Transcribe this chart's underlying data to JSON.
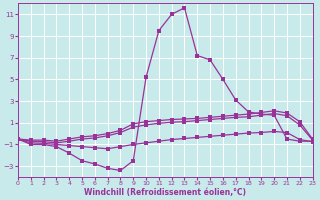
{
  "xlabel": "Windchill (Refroidissement éolien,°C)",
  "background_color": "#c8eaea",
  "grid_color": "#b8dada",
  "line_color": "#993399",
  "xlim": [
    0,
    23
  ],
  "ylim": [
    -4,
    12
  ],
  "yticks": [
    -3,
    -1,
    1,
    3,
    5,
    7,
    9,
    11
  ],
  "xticks": [
    0,
    1,
    2,
    3,
    4,
    5,
    6,
    7,
    8,
    9,
    10,
    11,
    12,
    13,
    14,
    15,
    16,
    17,
    18,
    19,
    20,
    21,
    22,
    23
  ],
  "series": {
    "main": {
      "x": [
        0,
        1,
        2,
        3,
        4,
        5,
        6,
        7,
        8,
        9,
        10,
        11,
        12,
        13,
        14,
        15,
        16,
        17,
        18,
        19,
        20,
        21,
        22,
        23
      ],
      "y": [
        -0.5,
        -1.0,
        -1.0,
        -1.2,
        -1.8,
        -2.5,
        -2.8,
        -3.2,
        -3.4,
        -2.5,
        5.2,
        9.5,
        11.0,
        11.6,
        7.2,
        6.8,
        5.0,
        3.1,
        2.0,
        1.8,
        1.7,
        -0.5,
        -0.7,
        -0.7
      ]
    },
    "upper": {
      "x": [
        0,
        1,
        2,
        3,
        4,
        5,
        6,
        7,
        8,
        9,
        10,
        11,
        12,
        13,
        14,
        15,
        16,
        17,
        18,
        19,
        20,
        21,
        22,
        23
      ],
      "y": [
        -0.5,
        -0.6,
        -0.6,
        -0.7,
        -0.5,
        -0.3,
        -0.2,
        0.0,
        0.3,
        0.9,
        1.1,
        1.2,
        1.3,
        1.35,
        1.4,
        1.5,
        1.6,
        1.7,
        1.8,
        1.95,
        2.1,
        1.9,
        1.1,
        -0.5
      ]
    },
    "mid": {
      "x": [
        0,
        1,
        2,
        3,
        4,
        5,
        6,
        7,
        8,
        9,
        10,
        11,
        12,
        13,
        14,
        15,
        16,
        17,
        18,
        19,
        20,
        21,
        22,
        23
      ],
      "y": [
        -0.5,
        -0.7,
        -0.75,
        -0.85,
        -0.7,
        -0.5,
        -0.4,
        -0.2,
        0.1,
        0.6,
        0.8,
        0.95,
        1.05,
        1.1,
        1.2,
        1.3,
        1.4,
        1.5,
        1.55,
        1.7,
        1.85,
        1.65,
        0.8,
        -0.6
      ]
    },
    "lower": {
      "x": [
        0,
        1,
        2,
        3,
        4,
        5,
        6,
        7,
        8,
        9,
        10,
        11,
        12,
        13,
        14,
        15,
        16,
        17,
        18,
        19,
        20,
        21,
        22,
        23
      ],
      "y": [
        -0.5,
        -0.85,
        -0.9,
        -1.0,
        -1.1,
        -1.2,
        -1.3,
        -1.4,
        -1.2,
        -1.0,
        -0.85,
        -0.7,
        -0.55,
        -0.45,
        -0.35,
        -0.25,
        -0.15,
        -0.05,
        0.05,
        0.1,
        0.2,
        0.1,
        -0.55,
        -0.75
      ]
    }
  }
}
